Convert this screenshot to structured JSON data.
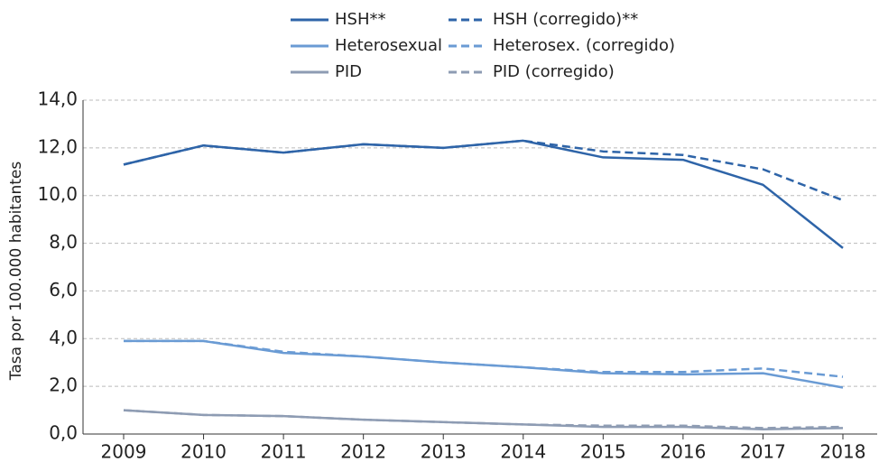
{
  "chart_data": {
    "type": "line",
    "y_label": "Tasa por 100.000 habitantes",
    "categories": [
      "2009",
      "2010",
      "2011",
      "2012",
      "2013",
      "2014",
      "2015",
      "2016",
      "2017",
      "2018"
    ],
    "series": [
      {
        "name": "HSH**",
        "color": "#2e64a8",
        "dashed": false,
        "values": [
          11.3,
          12.1,
          11.8,
          12.15,
          12.0,
          12.3,
          11.6,
          11.5,
          10.45,
          7.8
        ]
      },
      {
        "name": "HSH (corregido)**",
        "color": "#2e64a8",
        "dashed": true,
        "values": [
          11.3,
          12.1,
          11.8,
          12.15,
          12.0,
          12.3,
          11.85,
          11.7,
          11.1,
          9.8
        ]
      },
      {
        "name": "Heterosexual",
        "color": "#6a9bd4",
        "dashed": false,
        "values": [
          3.9,
          3.9,
          3.4,
          3.25,
          3.0,
          2.8,
          2.55,
          2.5,
          2.55,
          1.95
        ]
      },
      {
        "name": "Heterosex. (corregido)",
        "color": "#6a9bd4",
        "dashed": true,
        "values": [
          3.9,
          3.9,
          3.45,
          3.25,
          3.0,
          2.8,
          2.6,
          2.6,
          2.75,
          2.4
        ]
      },
      {
        "name": "PID",
        "color": "#8e9cb3",
        "dashed": false,
        "values": [
          1.0,
          0.8,
          0.75,
          0.6,
          0.5,
          0.4,
          0.3,
          0.3,
          0.2,
          0.25
        ]
      },
      {
        "name": "PID (corregido)",
        "color": "#8e9cb3",
        "dashed": true,
        "values": [
          1.0,
          0.8,
          0.75,
          0.6,
          0.5,
          0.4,
          0.35,
          0.35,
          0.25,
          0.3
        ]
      }
    ],
    "ylim": [
      0,
      14
    ],
    "yticks": [
      {
        "value": 0,
        "label": "0,0"
      },
      {
        "value": 2,
        "label": "2,0"
      },
      {
        "value": 4,
        "label": "4,0"
      },
      {
        "value": 6,
        "label": "6,0"
      },
      {
        "value": 8,
        "label": "8,0"
      },
      {
        "value": 10,
        "label": "10,0"
      },
      {
        "value": 12,
        "label": "12,0"
      },
      {
        "value": 14,
        "label": "14,0"
      }
    ],
    "grid": true
  }
}
